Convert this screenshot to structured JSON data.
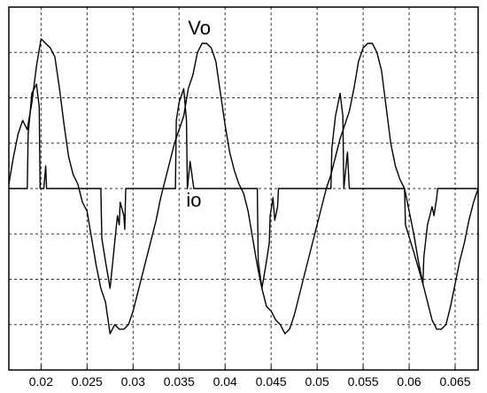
{
  "chart_data": {
    "type": "line",
    "title": "",
    "xlabel": "",
    "ylabel": "",
    "xlim": [
      0.0165,
      0.0675
    ],
    "ylim": [
      -4,
      4
    ],
    "grid": true,
    "x_ticks": [
      0.02,
      0.025,
      0.03,
      0.035,
      0.04,
      0.045,
      0.05,
      0.055,
      0.06,
      0.065
    ],
    "x_tick_labels": [
      "0.02",
      "0.025",
      "0.03",
      "0.035",
      "0.04",
      "0.045",
      "0.05",
      "0.055",
      "0.06",
      "0.065"
    ],
    "y_ticks": [
      -3,
      -2,
      -1,
      0,
      1,
      2,
      3
    ],
    "annotations": [
      {
        "text": "Vo",
        "x": 0.0372,
        "y": 3.4
      },
      {
        "text": "io",
        "x": 0.0366,
        "y": -0.4
      }
    ],
    "series": [
      {
        "name": "Vo",
        "x": [
          0.0165,
          0.017,
          0.0175,
          0.018,
          0.0185,
          0.019,
          0.0195,
          0.02,
          0.0205,
          0.021,
          0.0215,
          0.022,
          0.0225,
          0.023,
          0.0235,
          0.024,
          0.0245,
          0.025,
          0.0255,
          0.026,
          0.0265,
          0.027,
          0.0275,
          0.028,
          0.0285,
          0.029,
          0.0295,
          0.03,
          0.0305,
          0.031,
          0.0315,
          0.032,
          0.0325,
          0.033,
          0.0335,
          0.034,
          0.0345,
          0.035,
          0.0355,
          0.036,
          0.0365,
          0.037,
          0.0375,
          0.038,
          0.0385,
          0.039,
          0.0395,
          0.04,
          0.0405,
          0.041,
          0.0415,
          0.042,
          0.0425,
          0.043,
          0.0435,
          0.044,
          0.0445,
          0.045,
          0.0455,
          0.046,
          0.0465,
          0.047,
          0.0475,
          0.048,
          0.0485,
          0.049,
          0.0495,
          0.05,
          0.0505,
          0.051,
          0.0515,
          0.052,
          0.0525,
          0.053,
          0.0535,
          0.054,
          0.0545,
          0.055,
          0.0555,
          0.056,
          0.0565,
          0.057,
          0.0575,
          0.058,
          0.0585,
          0.059,
          0.0595,
          0.06,
          0.0605,
          0.061,
          0.0615,
          0.062,
          0.0625,
          0.063,
          0.0635,
          0.064,
          0.0645,
          0.065,
          0.0655,
          0.066,
          0.0665,
          0.067,
          0.0675
        ],
        "y": [
          0.1,
          0.7,
          1.2,
          1.5,
          1.3,
          1.9,
          2.7,
          3.3,
          3.2,
          3.1,
          2.9,
          2.2,
          1.4,
          0.7,
          0.3,
          0.1,
          -0.3,
          -0.5,
          -1.1,
          -1.7,
          -2.2,
          -2.5,
          -3.2,
          -3.0,
          -3.1,
          -3.1,
          -3.0,
          -2.7,
          -2.3,
          -1.9,
          -1.5,
          -1.1,
          -0.7,
          -0.2,
          0.2,
          0.6,
          1.0,
          1.3,
          1.6,
          2.2,
          2.5,
          3.0,
          3.2,
          3.2,
          3.1,
          2.8,
          2.1,
          1.4,
          0.8,
          0.4,
          0.1,
          -0.1,
          -0.5,
          -1.1,
          -1.7,
          -2.2,
          -2.6,
          -2.7,
          -2.9,
          -3.0,
          -3.2,
          -3.1,
          -2.8,
          -2.4,
          -2.0,
          -1.6,
          -1.2,
          -0.8,
          -0.4,
          0.0,
          0.3,
          0.7,
          1.1,
          1.4,
          1.7,
          2.2,
          2.8,
          3.1,
          3.2,
          3.2,
          3.0,
          2.6,
          1.8,
          1.0,
          0.5,
          0.2,
          0.0,
          -0.5,
          -1.0,
          -1.6,
          -2.1,
          -2.5,
          -2.9,
          -3.1,
          -3.1,
          -3.0,
          -2.6,
          -2.1,
          -1.6,
          -1.2,
          -0.7,
          -0.3,
          0.0
        ]
      },
      {
        "name": "io",
        "x": [
          0.0165,
          0.0185,
          0.0186,
          0.019,
          0.0195,
          0.0198,
          0.0199,
          0.0203,
          0.0205,
          0.0206,
          0.021,
          0.0215,
          0.022,
          0.0225,
          0.0245,
          0.0265,
          0.0266,
          0.027,
          0.0275,
          0.028,
          0.0283,
          0.0285,
          0.0286,
          0.029,
          0.0291,
          0.0292,
          0.0295,
          0.0346,
          0.0347,
          0.035,
          0.0355,
          0.0358,
          0.0359,
          0.0362,
          0.0366,
          0.037,
          0.0373,
          0.0375,
          0.0376,
          0.038,
          0.0385,
          0.0425,
          0.0435,
          0.0436,
          0.044,
          0.0445,
          0.0448,
          0.0449,
          0.0452,
          0.0454,
          0.0457,
          0.0458,
          0.0515,
          0.0516,
          0.052,
          0.0525,
          0.0528,
          0.0529,
          0.0533,
          0.0535,
          0.054,
          0.0545,
          0.059,
          0.0595,
          0.0596,
          0.0605,
          0.0615,
          0.0616,
          0.062,
          0.0625,
          0.0627,
          0.063,
          0.0631,
          0.0675
        ],
        "y": [
          0.0,
          0.0,
          1.2,
          2.1,
          2.3,
          1.8,
          0.0,
          0.0,
          0.5,
          0.0,
          0.0,
          0.0,
          0.0,
          0.0,
          0.0,
          0.0,
          -1.1,
          -1.6,
          -2.2,
          -1.2,
          -0.6,
          -0.8,
          -0.3,
          -0.6,
          -0.9,
          0.0,
          0.0,
          0.0,
          1.5,
          1.9,
          2.2,
          1.5,
          0.0,
          0.6,
          0.0,
          0.0,
          0.0,
          0.0,
          0.0,
          0.0,
          0.0,
          0.0,
          0.0,
          -1.6,
          -2.2,
          -1.6,
          -1.2,
          -0.6,
          -0.2,
          -0.7,
          -0.4,
          0.0,
          0.0,
          0.9,
          1.6,
          2.1,
          1.6,
          0.0,
          0.8,
          0.0,
          0.0,
          0.0,
          0.0,
          0.0,
          -0.8,
          -1.4,
          -2.1,
          -1.5,
          -0.8,
          -0.4,
          -0.6,
          -0.2,
          0.0,
          0.0
        ]
      }
    ]
  }
}
